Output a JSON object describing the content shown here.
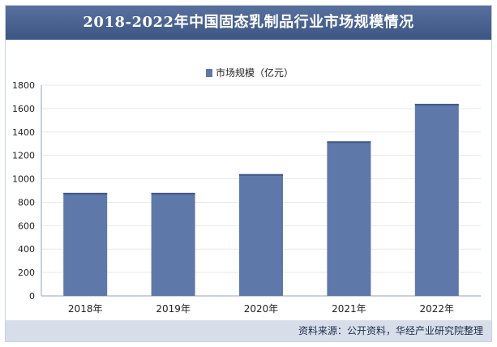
{
  "title": "2018-2022年中国固态乳制品行业市场规模情况",
  "source": "资料来源：公开资料，华经产业研究院整理",
  "chart_data": {
    "type": "bar",
    "categories": [
      "2018年",
      "2019年",
      "2020年",
      "2021年",
      "2022年"
    ],
    "series": [
      {
        "name": "市场规模（亿元）",
        "values": [
          880,
          880,
          1040,
          1320,
          1640
        ]
      }
    ],
    "ylim": [
      0,
      1800
    ],
    "yticks": [
      0,
      200,
      400,
      600,
      800,
      1000,
      1200,
      1400,
      1600,
      1800
    ],
    "grid": true,
    "legend_position": "top-center",
    "colors": {
      "bar": "#5f78aa",
      "bar_top": "#3f5686",
      "title_bg": "#4a6391"
    }
  }
}
